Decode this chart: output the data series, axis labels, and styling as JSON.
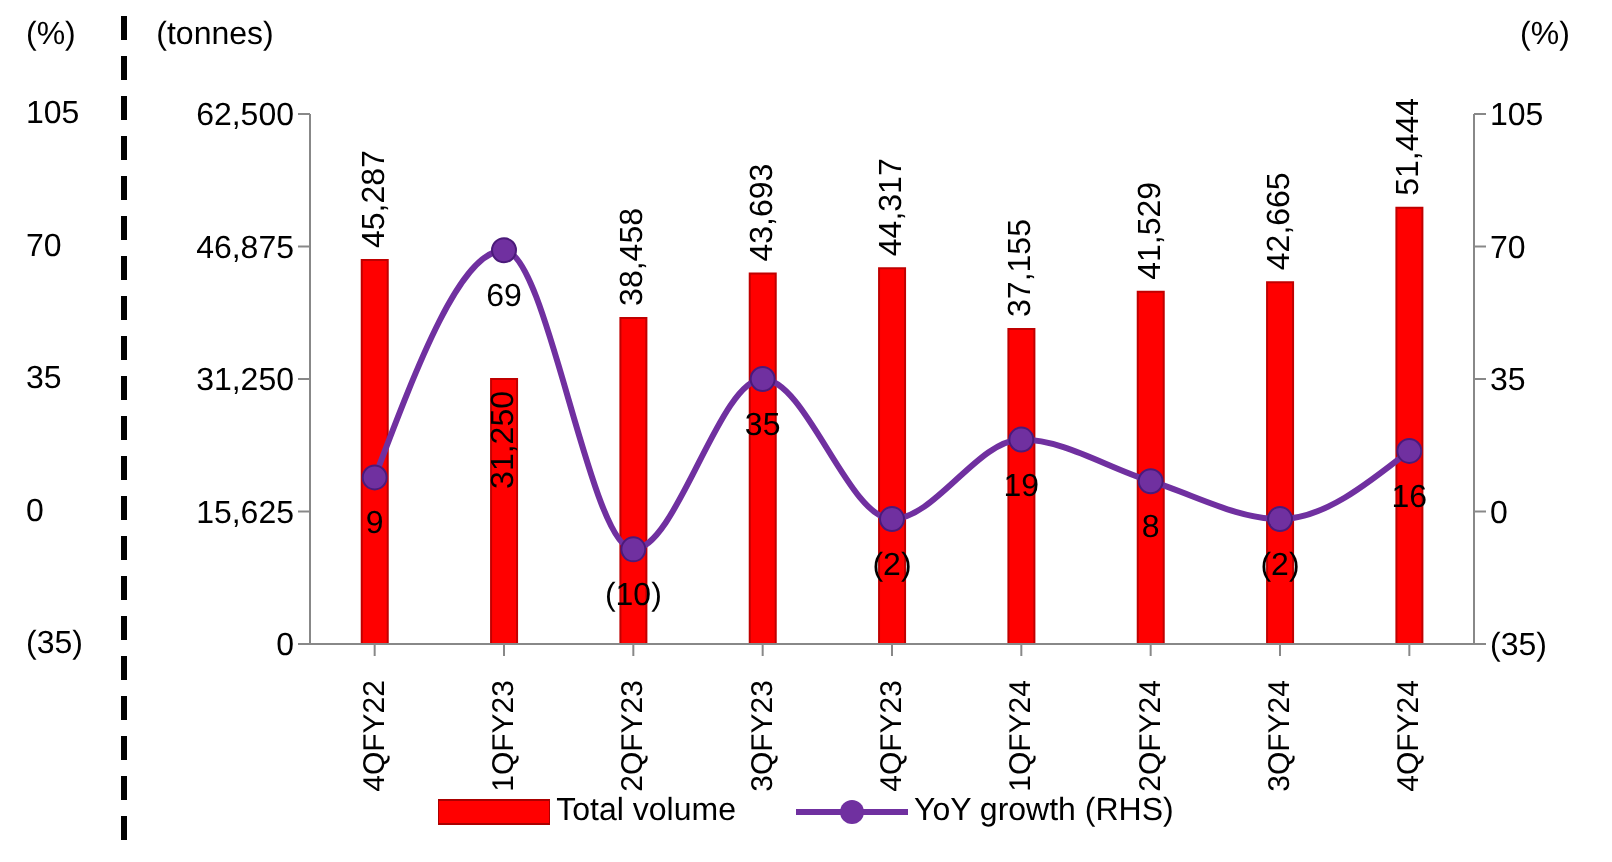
{
  "chart_data": {
    "type": "bar",
    "categories": [
      "4QFY22",
      "1QFY23",
      "2QFY23",
      "3QFY23",
      "4QFY23",
      "1QFY24",
      "2QFY24",
      "3QFY24",
      "4QFY24"
    ],
    "series": [
      {
        "name": "Total volume",
        "color": "#ff0000",
        "values": [
          45287,
          31250,
          38458,
          43693,
          44317,
          37155,
          41529,
          42665,
          51444
        ],
        "value_labels": [
          "45,287",
          "31,250",
          "38,458",
          "43,693",
          "44,317",
          "37,155",
          "41,529",
          "42,665",
          "51,444"
        ]
      },
      {
        "name": "YoY growth (RHS)",
        "type": "line",
        "axis": "y2",
        "color": "#7030a0",
        "values": [
          9,
          69,
          -10,
          35,
          -2,
          19,
          8,
          -2,
          16
        ],
        "value_labels": [
          "9",
          "69",
          "(10)",
          "35",
          "(2)",
          "19",
          "8",
          "(2)",
          "16"
        ]
      }
    ],
    "ylabel": "(tonnes)",
    "y2label": "(%)",
    "y3label": "(%)",
    "ylim": [
      0,
      62500
    ],
    "yticks": [
      0,
      {
        "value": 15625,
        "label": "15,625"
      },
      {
        "value": 31250,
        "label": "31,250"
      },
      {
        "value": 46875,
        "label": "46,875"
      },
      {
        "value": 62500,
        "label": "62,500"
      }
    ],
    "y2lim": [
      -35,
      105
    ],
    "y2ticks": [
      {
        "value": -35,
        "label": "(35)"
      },
      0,
      35,
      70,
      105
    ],
    "y3lim": [
      -35,
      105
    ],
    "y3ticks": [
      {
        "value": -35,
        "label": "(35)"
      },
      0,
      35,
      70,
      105
    ],
    "data_labels": true,
    "marker": "circle",
    "legend": "bottom"
  }
}
